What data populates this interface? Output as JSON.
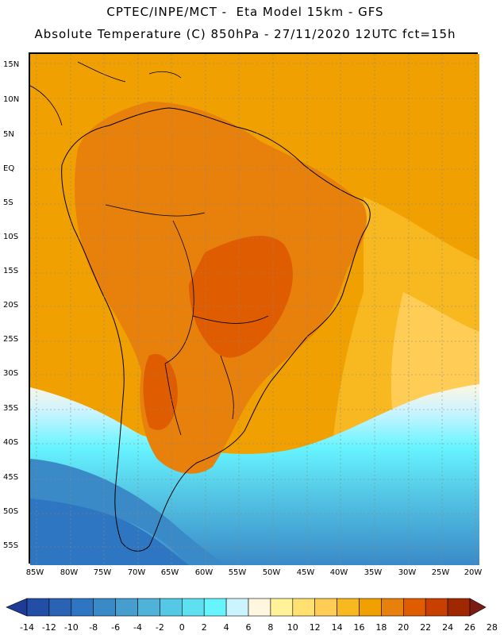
{
  "header": {
    "line1": "CPTEC/INPE/MCT -  Eta Model 15km - GFS",
    "line2": "Absolute Temperature (C) 850hPa - 27/11/2020 12UTC fct=15h"
  },
  "map": {
    "variable": "Absolute Temperature (C) at 850hPa",
    "latitude_labels": [
      "15N",
      "10N",
      "5N",
      "EQ",
      "5S",
      "10S",
      "15S",
      "20S",
      "25S",
      "30S",
      "35S",
      "40S",
      "45S",
      "50S",
      "55S"
    ],
    "longitude_labels": [
      "85W",
      "80W",
      "75W",
      "70W",
      "65W",
      "60W",
      "55W",
      "50W",
      "45W",
      "40W",
      "35W",
      "30W",
      "25W",
      "20W"
    ]
  },
  "legend": {
    "labels": [
      "-14",
      "-12",
      "-10",
      "-8",
      "-6",
      "-4",
      "-2",
      "0",
      "2",
      "4",
      "6",
      "8",
      "10",
      "12",
      "14",
      "16",
      "18",
      "20",
      "22",
      "24",
      "26",
      "28"
    ],
    "colors": [
      "#1e3c96",
      "#234ea6",
      "#2a62b4",
      "#2e76c2",
      "#3a8ac8",
      "#469ecf",
      "#4fb2d8",
      "#55c8e6",
      "#5ee0f0",
      "#66f4ff",
      "#ccf4ff",
      "#fff6e0",
      "#fff299",
      "#ffe070",
      "#ffcc55",
      "#f7b820",
      "#f0a000",
      "#e8800c",
      "#e05c00",
      "#c84000",
      "#a02800",
      "#7a1c14"
    ]
  }
}
